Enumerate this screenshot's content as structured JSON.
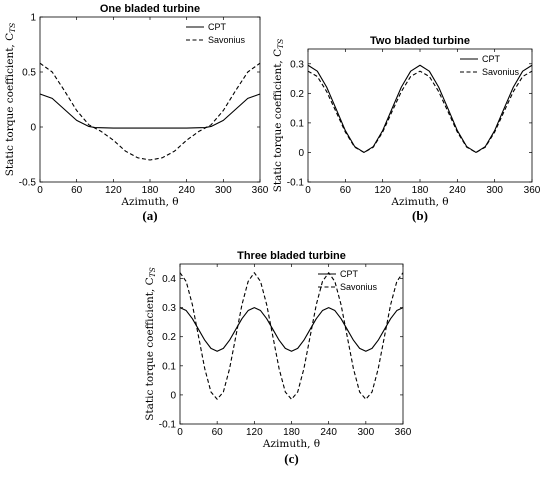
{
  "chart_data": [
    {
      "type": "line",
      "panel_label": "(a)",
      "title": "One bladed turbine",
      "xlabel": "Azimuth, θ",
      "ylabel": "Static torque coefficient, C",
      "ylabel_sub": "TS",
      "xlim": [
        0,
        360
      ],
      "ylim": [
        -0.5,
        1
      ],
      "xticks": [
        0,
        60,
        120,
        180,
        240,
        300,
        360
      ],
      "xtick_labels": [
        "0",
        "60",
        "120",
        "180",
        "240",
        "300",
        "360"
      ],
      "yticks": [
        -0.5,
        0,
        0.5,
        1
      ],
      "ytick_labels": [
        "-0.5",
        "0",
        "0.5",
        "1"
      ],
      "grid": false,
      "legend_position": "top-right",
      "series": [
        {
          "name": "CPT",
          "style": "solid",
          "x": [
            0,
            20,
            40,
            60,
            80,
            90,
            120,
            150,
            180,
            210,
            240,
            270,
            280,
            300,
            320,
            340,
            360
          ],
          "y": [
            0.3,
            0.26,
            0.16,
            0.06,
            0.005,
            -0.005,
            -0.01,
            -0.01,
            -0.01,
            -0.01,
            -0.01,
            -0.005,
            0.005,
            0.06,
            0.16,
            0.26,
            0.3
          ]
        },
        {
          "name": "Savonius",
          "style": "dashed",
          "x": [
            0,
            20,
            40,
            60,
            80,
            100,
            120,
            140,
            160,
            180,
            200,
            220,
            240,
            260,
            280,
            300,
            320,
            340,
            360
          ],
          "y": [
            0.58,
            0.5,
            0.33,
            0.15,
            0.02,
            -0.04,
            -0.12,
            -0.22,
            -0.28,
            -0.3,
            -0.28,
            -0.22,
            -0.12,
            -0.04,
            0.02,
            0.15,
            0.33,
            0.5,
            0.58
          ]
        }
      ]
    },
    {
      "type": "line",
      "panel_label": "(b)",
      "title": "Two bladed turbine",
      "xlabel": "Azimuth, θ",
      "ylabel": "Static torque coefficient, C",
      "ylabel_sub": "TS",
      "xlim": [
        0,
        360
      ],
      "ylim": [
        -0.1,
        0.35
      ],
      "xticks": [
        0,
        60,
        120,
        180,
        240,
        300,
        360
      ],
      "xtick_labels": [
        "0",
        "60",
        "120",
        "180",
        "240",
        "300",
        "360"
      ],
      "yticks": [
        -0.1,
        0,
        0.1,
        0.2,
        0.3
      ],
      "ytick_labels": [
        "-0.1",
        "0",
        "0.1",
        "0.2",
        "0.3"
      ],
      "grid": false,
      "legend_position": "top-right",
      "series": [
        {
          "name": "CPT",
          "style": "solid",
          "x": [
            0,
            15,
            30,
            45,
            60,
            75,
            90,
            105,
            120,
            135,
            150,
            165,
            180,
            195,
            210,
            225,
            240,
            255,
            270,
            285,
            300,
            315,
            330,
            345,
            360
          ],
          "y": [
            0.295,
            0.275,
            0.221,
            0.148,
            0.074,
            0.02,
            0.0,
            0.02,
            0.074,
            0.148,
            0.221,
            0.275,
            0.295,
            0.275,
            0.221,
            0.148,
            0.074,
            0.02,
            0.0,
            0.02,
            0.074,
            0.148,
            0.221,
            0.275,
            0.295
          ]
        },
        {
          "name": "Savonius",
          "style": "dashed",
          "x": [
            0,
            15,
            30,
            45,
            60,
            75,
            90,
            105,
            120,
            135,
            150,
            165,
            180,
            195,
            210,
            225,
            240,
            255,
            270,
            285,
            300,
            315,
            330,
            345,
            360
          ],
          "y": [
            0.275,
            0.257,
            0.206,
            0.138,
            0.069,
            0.018,
            0.0,
            0.018,
            0.069,
            0.138,
            0.206,
            0.257,
            0.275,
            0.257,
            0.206,
            0.138,
            0.069,
            0.018,
            0.0,
            0.018,
            0.069,
            0.138,
            0.206,
            0.257,
            0.275
          ]
        }
      ]
    },
    {
      "type": "line",
      "panel_label": "(c)",
      "title": "Three bladed turbine",
      "xlabel": "Azimuth, θ",
      "ylabel": "Static torque coefficient, C",
      "ylabel_sub": "TS",
      "xlim": [
        0,
        360
      ],
      "ylim": [
        -0.1,
        0.45
      ],
      "xticks": [
        0,
        60,
        120,
        180,
        240,
        300,
        360
      ],
      "xtick_labels": [
        "0",
        "60",
        "120",
        "180",
        "240",
        "300",
        "360"
      ],
      "yticks": [
        -0.1,
        0,
        0.1,
        0.2,
        0.3,
        0.4
      ],
      "ytick_labels": [
        "-0.1",
        "0",
        "0.1",
        "0.2",
        "0.3",
        "0.4"
      ],
      "grid": false,
      "legend_position": "top-right",
      "series": [
        {
          "name": "CPT",
          "style": "solid",
          "x": [
            0,
            10,
            20,
            30,
            40,
            50,
            60,
            70,
            80,
            90,
            100,
            110,
            120,
            130,
            140,
            150,
            160,
            170,
            180,
            190,
            200,
            210,
            220,
            230,
            240,
            250,
            260,
            270,
            280,
            290,
            300,
            310,
            320,
            330,
            340,
            350,
            360
          ],
          "y": [
            0.3,
            0.29,
            0.262,
            0.225,
            0.188,
            0.16,
            0.15,
            0.16,
            0.188,
            0.225,
            0.262,
            0.29,
            0.3,
            0.29,
            0.262,
            0.225,
            0.188,
            0.16,
            0.15,
            0.16,
            0.188,
            0.225,
            0.262,
            0.29,
            0.3,
            0.29,
            0.262,
            0.225,
            0.188,
            0.16,
            0.15,
            0.16,
            0.188,
            0.225,
            0.262,
            0.29,
            0.3
          ]
        },
        {
          "name": "Savonius",
          "style": "dashed",
          "x": [
            0,
            10,
            20,
            30,
            40,
            50,
            60,
            70,
            80,
            90,
            100,
            110,
            120,
            130,
            140,
            150,
            160,
            170,
            180,
            190,
            200,
            210,
            220,
            230,
            240,
            250,
            260,
            270,
            280,
            290,
            300,
            310,
            320,
            330,
            340,
            350,
            360
          ],
          "y": [
            0.42,
            0.39,
            0.31,
            0.2,
            0.09,
            0.01,
            -0.015,
            0.01,
            0.09,
            0.2,
            0.31,
            0.39,
            0.42,
            0.39,
            0.31,
            0.2,
            0.09,
            0.01,
            -0.015,
            0.01,
            0.09,
            0.2,
            0.31,
            0.39,
            0.42,
            0.39,
            0.31,
            0.2,
            0.09,
            0.01,
            -0.015,
            0.01,
            0.09,
            0.2,
            0.31,
            0.39,
            0.42
          ]
        }
      ]
    }
  ]
}
